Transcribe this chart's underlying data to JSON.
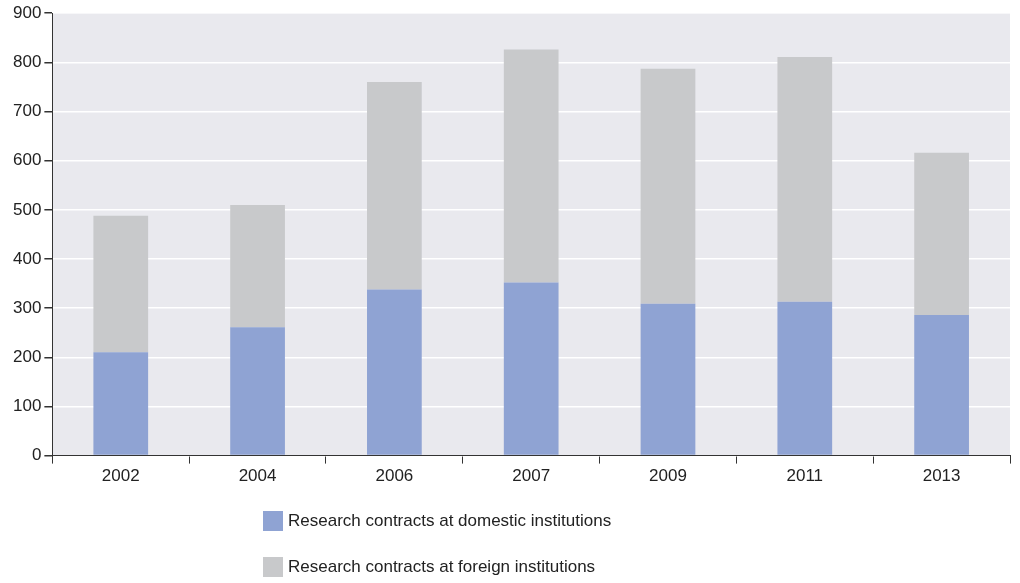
{
  "chart_data": {
    "type": "bar",
    "stacked": true,
    "categories": [
      "2002",
      "2004",
      "2006",
      "2007",
      "2009",
      "2011",
      "2013"
    ],
    "series": [
      {
        "name": "Research contracts at domestic institutions",
        "color": "#8fa3d3",
        "values": [
          210,
          261,
          338,
          352,
          309,
          313,
          286
        ]
      },
      {
        "name": "Research contracts at foreign institutions",
        "color": "#c8c9cb",
        "values": [
          278,
          249,
          422,
          474,
          478,
          498,
          330
        ]
      }
    ],
    "ylim": [
      0,
      900
    ],
    "yticks": [
      0,
      100,
      200,
      300,
      400,
      500,
      600,
      700,
      800,
      900
    ],
    "grid": "y",
    "legend": "bottom"
  }
}
